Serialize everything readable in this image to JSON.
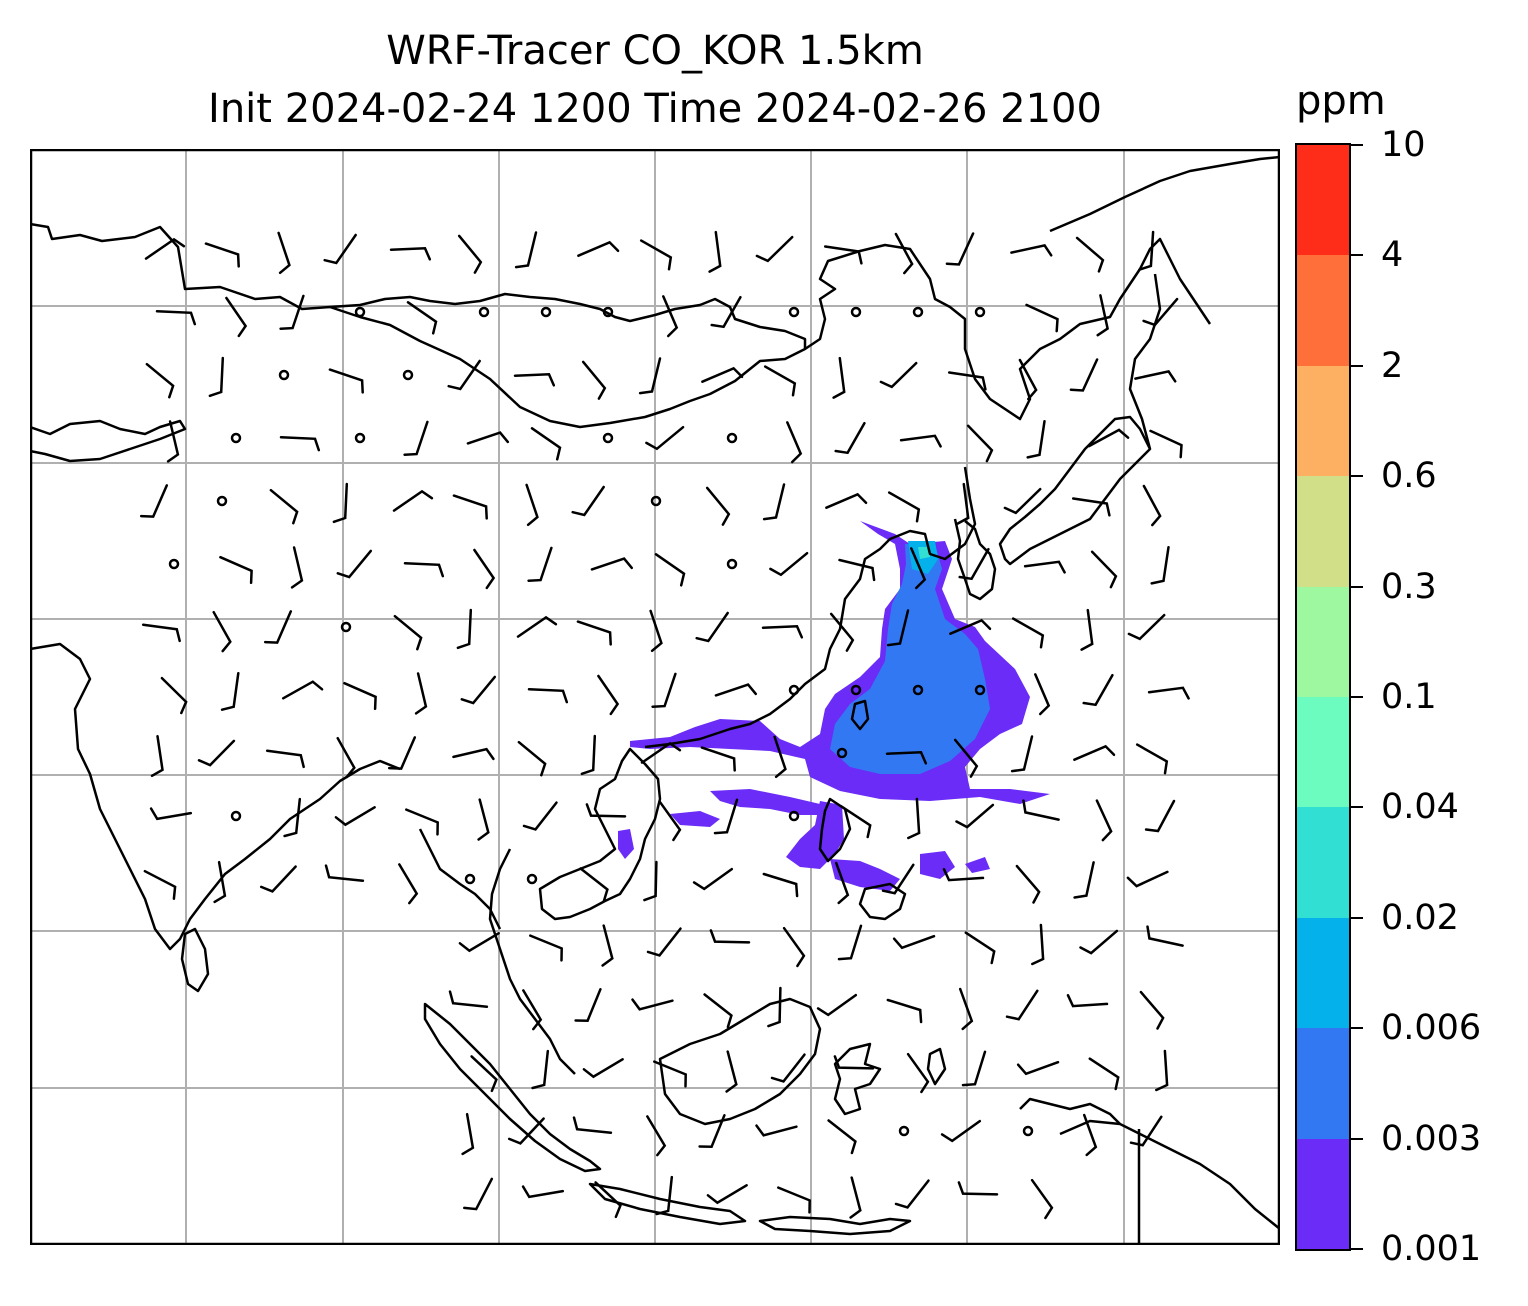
{
  "title_line1": "WRF-Tracer CO_KOR 1.5km",
  "title_line2": "Init 2024-02-24 1200 Time 2024-02-26 2100",
  "colorbar": {
    "unit": "ppm",
    "levels": [
      "0.001",
      "0.003",
      "0.006",
      "0.02",
      "0.04",
      "0.1",
      "0.3",
      "0.6",
      "2",
      "4",
      "10"
    ],
    "colors": [
      "#6a2cf6",
      "#3378f3",
      "#04b1eb",
      "#31e0d2",
      "#6cfcc0",
      "#9ef89f",
      "#d1e088",
      "#fdb061",
      "#fe6f3a",
      "#fd2d1a"
    ]
  },
  "map": {
    "gridlines": true,
    "frame_color": "#000000",
    "coastline_color": "#000000",
    "grid_color": "#b0b0b0",
    "plume_colors": [
      "#6a2cf6",
      "#3378f3",
      "#04b1eb",
      "#31e0d2"
    ],
    "wind_barbs": true,
    "calm_markers": true
  }
}
